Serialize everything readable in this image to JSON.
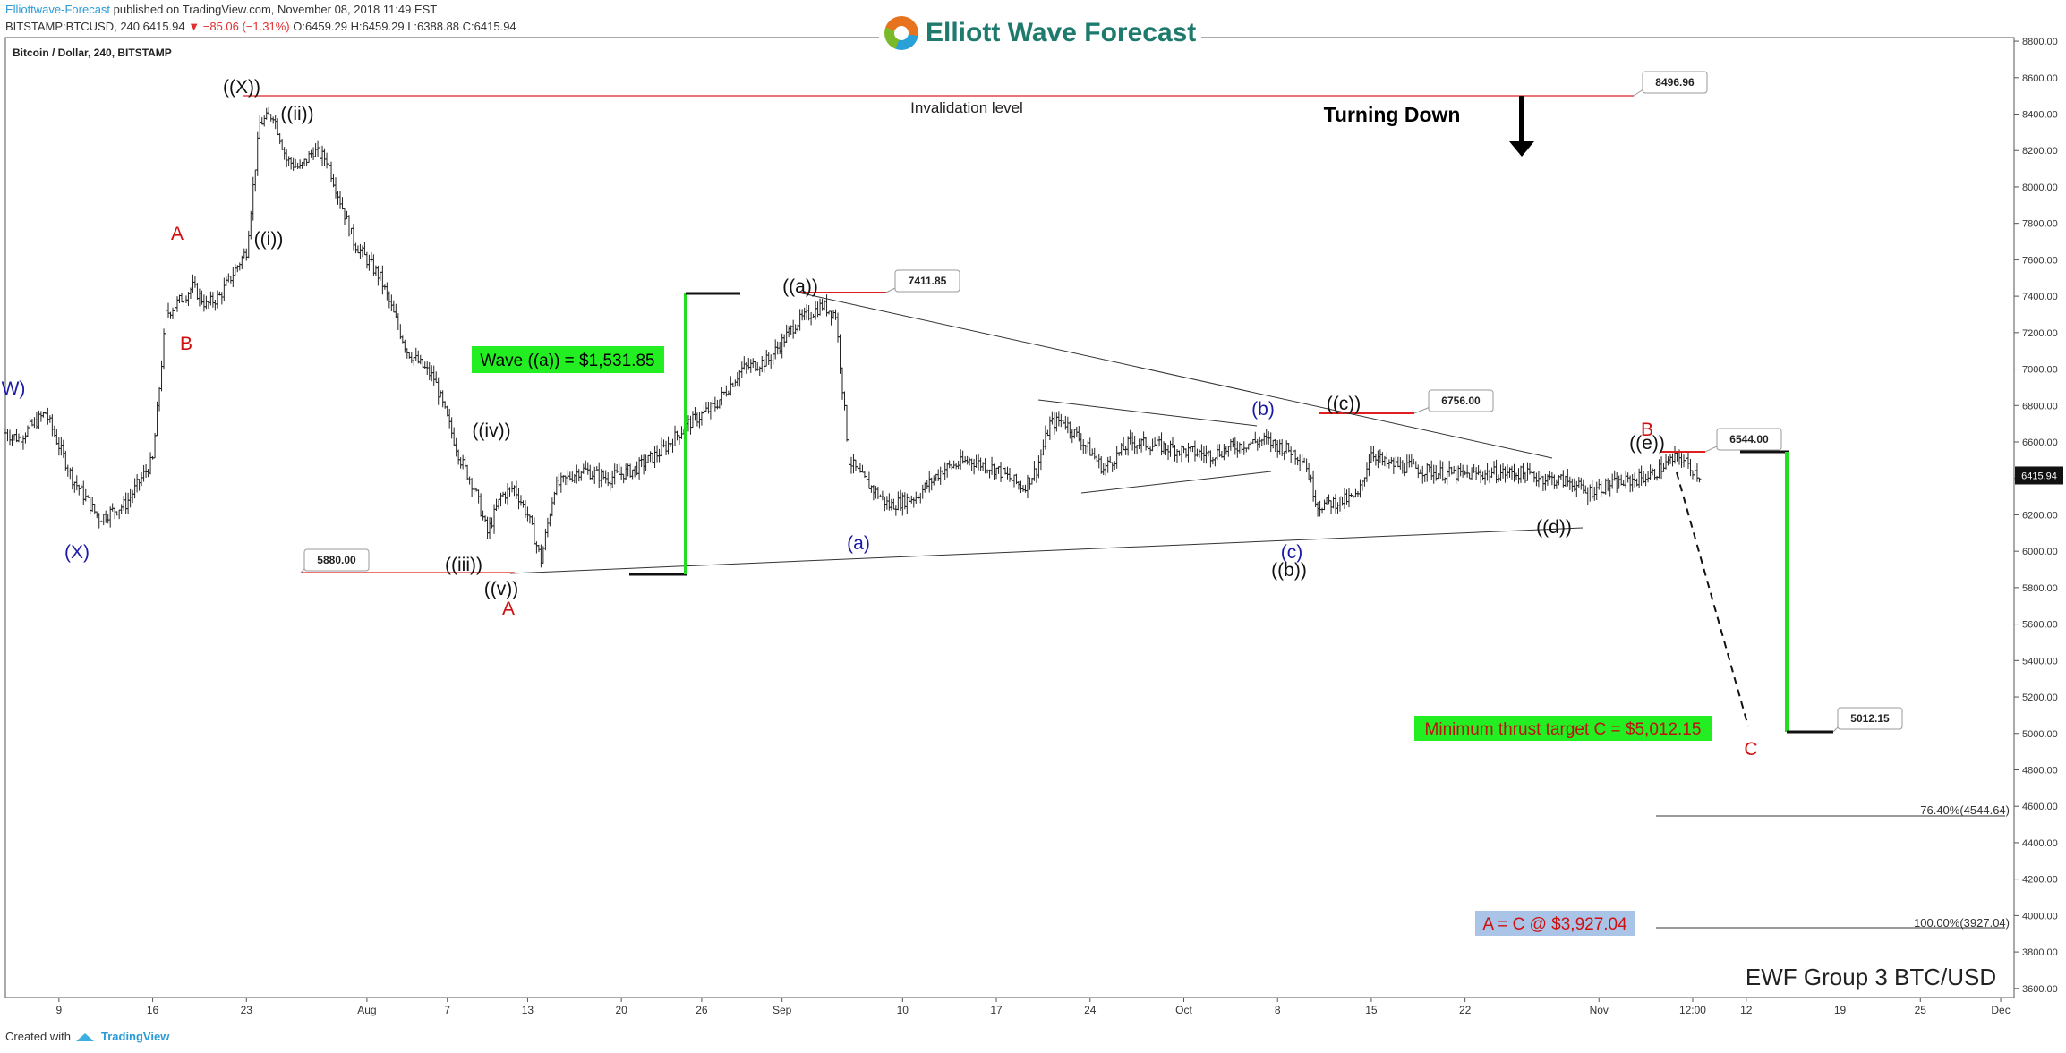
{
  "header": {
    "publisher": "Elliottwave-Forecast",
    "published": "published on TradingView.com, November 08, 2018 11:49 EST",
    "symbol": "BITSTAMP:BTCUSD, 240",
    "last": "6415.94",
    "change": "▼ −85.06 (−1.31%)",
    "open": "O:6459.29",
    "high": "H:6459.29",
    "low": "L:6388.88",
    "close": "C:6415.94"
  },
  "logo": {
    "text": "Elliott Wave Forecast"
  },
  "symbol_title": "Bitcoin / Dollar, 240, BITSTAMP",
  "footer": {
    "created_with": "Created with",
    "brand": "TradingView"
  },
  "chart_data": {
    "type": "ohlc",
    "title": "Bitcoin / Dollar, 240, BITSTAMP",
    "ylim": [
      3550,
      8820
    ],
    "x_dates": [
      "2018-07-05",
      "2018-12-02"
    ],
    "ytick_values": [
      3600,
      3800,
      4000,
      4200,
      4400,
      4600,
      4800,
      5000,
      5200,
      5400,
      5600,
      5800,
      6000,
      6200,
      6400,
      6600,
      6800,
      7000,
      7200,
      7400,
      7600,
      7800,
      8000,
      8200,
      8400,
      8600,
      8800
    ],
    "ytick_labels": [
      "3600.00",
      "3800.00",
      "4000.00",
      "4200.00",
      "4400.00",
      "4600.00",
      "4800.00",
      "5000.00",
      "5200.00",
      "5400.00",
      "5600.00",
      "5800.00",
      "6000.00",
      "6200.00",
      "6400.00",
      "6600.00",
      "6800.00",
      "7000.00",
      "7200.00",
      "7400.00",
      "7600.00",
      "7800.00",
      "8000.00",
      "8200.00",
      "8400.00",
      "8600.00",
      "8800.00"
    ],
    "xticks": [
      {
        "date": "2018-07-09",
        "label": "9"
      },
      {
        "date": "2018-07-16",
        "label": "16"
      },
      {
        "date": "2018-07-23",
        "label": "23"
      },
      {
        "date": "2018-08-01",
        "label": "Aug"
      },
      {
        "date": "2018-08-07",
        "label": "7"
      },
      {
        "date": "2018-08-13",
        "label": "13"
      },
      {
        "date": "2018-08-20",
        "label": "20"
      },
      {
        "date": "2018-08-26",
        "label": "26"
      },
      {
        "date": "2018-09-01",
        "label": "Sep"
      },
      {
        "date": "2018-09-10",
        "label": "10"
      },
      {
        "date": "2018-09-17",
        "label": "17"
      },
      {
        "date": "2018-09-24",
        "label": "24"
      },
      {
        "date": "2018-10-01",
        "label": "Oct"
      },
      {
        "date": "2018-10-08",
        "label": "8"
      },
      {
        "date": "2018-10-15",
        "label": "15"
      },
      {
        "date": "2018-10-22",
        "label": "22"
      },
      {
        "date": "2018-11-01",
        "label": "Nov"
      },
      {
        "date": "2018-11-08",
        "label": "12:00"
      },
      {
        "date": "2018-11-12",
        "label": "12"
      },
      {
        "date": "2018-11-19",
        "label": "19"
      },
      {
        "date": "2018-11-25",
        "label": "25"
      },
      {
        "date": "2018-12-01",
        "label": "Dec"
      }
    ],
    "price_path": [
      [
        "2018-07-05",
        6650
      ],
      [
        "2018-07-06",
        6620
      ],
      [
        "2018-07-08",
        6760
      ],
      [
        "2018-07-10",
        6400
      ],
      [
        "2018-07-12",
        6180
      ],
      [
        "2018-07-14",
        6260
      ],
      [
        "2018-07-16",
        6500
      ],
      [
        "2018-07-17",
        7300
      ],
      [
        "2018-07-19",
        7450
      ],
      [
        "2018-07-20",
        7350
      ],
      [
        "2018-07-21",
        7400
      ],
      [
        "2018-07-23",
        7650
      ],
      [
        "2018-07-24",
        8350
      ],
      [
        "2018-07-25",
        8400
      ],
      [
        "2018-07-26",
        8150
      ],
      [
        "2018-07-27",
        8100
      ],
      [
        "2018-07-28",
        8200
      ],
      [
        "2018-07-29",
        8150
      ],
      [
        "2018-07-31",
        7700
      ],
      [
        "2018-08-02",
        7500
      ],
      [
        "2018-08-04",
        7100
      ],
      [
        "2018-08-06",
        6950
      ],
      [
        "2018-08-08",
        6500
      ],
      [
        "2018-08-09",
        6350
      ],
      [
        "2018-08-10",
        6100
      ],
      [
        "2018-08-11",
        6300
      ],
      [
        "2018-08-12",
        6350
      ],
      [
        "2018-08-13",
        6200
      ],
      [
        "2018-08-14",
        5950
      ],
      [
        "2018-08-15",
        6350
      ],
      [
        "2018-08-17",
        6450
      ],
      [
        "2018-08-19",
        6400
      ],
      [
        "2018-08-21",
        6450
      ],
      [
        "2018-08-23",
        6550
      ],
      [
        "2018-08-25",
        6700
      ],
      [
        "2018-08-27",
        6800
      ],
      [
        "2018-08-29",
        7000
      ],
      [
        "2018-08-31",
        7050
      ],
      [
        "2018-09-02",
        7250
      ],
      [
        "2018-09-04",
        7350
      ],
      [
        "2018-09-05",
        7300
      ],
      [
        "2018-09-06",
        6500
      ],
      [
        "2018-09-07",
        6400
      ],
      [
        "2018-09-09",
        6250
      ],
      [
        "2018-09-11",
        6300
      ],
      [
        "2018-09-13",
        6450
      ],
      [
        "2018-09-15",
        6500
      ],
      [
        "2018-09-17",
        6450
      ],
      [
        "2018-09-19",
        6350
      ],
      [
        "2018-09-20",
        6450
      ],
      [
        "2018-09-21",
        6700
      ],
      [
        "2018-09-22",
        6720
      ],
      [
        "2018-09-24",
        6550
      ],
      [
        "2018-09-25",
        6450
      ],
      [
        "2018-09-27",
        6600
      ],
      [
        "2018-09-29",
        6580
      ],
      [
        "2018-10-01",
        6550
      ],
      [
        "2018-10-03",
        6530
      ],
      [
        "2018-10-05",
        6580
      ],
      [
        "2018-10-07",
        6610
      ],
      [
        "2018-10-09",
        6550
      ],
      [
        "2018-10-10",
        6500
      ],
      [
        "2018-10-11",
        6250
      ],
      [
        "2018-10-13",
        6280
      ],
      [
        "2018-10-14",
        6300
      ],
      [
        "2018-10-15",
        6550
      ],
      [
        "2018-10-16",
        6480
      ],
      [
        "2018-10-18",
        6460
      ],
      [
        "2018-10-20",
        6430
      ],
      [
        "2018-10-22",
        6420
      ],
      [
        "2018-10-24",
        6430
      ],
      [
        "2018-10-26",
        6430
      ],
      [
        "2018-10-28",
        6400
      ],
      [
        "2018-10-30",
        6380
      ],
      [
        "2018-10-31",
        6320
      ],
      [
        "2018-11-01",
        6350
      ],
      [
        "2018-11-03",
        6380
      ],
      [
        "2018-11-05",
        6420
      ],
      [
        "2018-11-06",
        6480
      ],
      [
        "2018-11-07",
        6520
      ],
      [
        "2018-11-08",
        6450
      ],
      [
        "2018-11-08.5",
        6416
      ]
    ]
  },
  "annotations": {
    "price_boxes": [
      {
        "label": "8496.96"
      },
      {
        "label": "7411.85"
      },
      {
        "label": "6756.00"
      },
      {
        "label": "6544.00"
      },
      {
        "label": "5880.00"
      },
      {
        "label": "5012.15"
      }
    ],
    "last_price_tag": "6415.94",
    "invalidation": "Invalidation level",
    "turning_down": "Turning Down",
    "wave_a_box": "Wave ((a)) = $1,531.85",
    "min_thrust_box": "Minimum thrust target C = $5,012.15",
    "a_eq_c_box": "A = C @ $3,927.04",
    "fib_76": "76.40%(4544.64)",
    "fib_100": "100.00%(3927.04)",
    "group_label": "EWF Group 3 BTC/USD",
    "wave_labels": [
      {
        "text": "W)",
        "color": "#1a1aa8"
      },
      {
        "text": "(X)",
        "color": "#1a1aa8"
      },
      {
        "text": "A",
        "color": "#d01010"
      },
      {
        "text": "B",
        "color": "#d01010"
      },
      {
        "text": "((X))",
        "color": "#111111"
      },
      {
        "text": "((ii))",
        "color": "#111111"
      },
      {
        "text": "((i))",
        "color": "#111111"
      },
      {
        "text": "((iv))",
        "color": "#111111"
      },
      {
        "text": "((iii))",
        "color": "#111111"
      },
      {
        "text": "((v))",
        "color": "#111111"
      },
      {
        "text": "A",
        "color": "#d01010"
      },
      {
        "text": "((a))",
        "color": "#111111"
      },
      {
        "text": "(a)",
        "color": "#1a1aa8"
      },
      {
        "text": "(b)",
        "color": "#1a1aa8"
      },
      {
        "text": "(c)",
        "color": "#1a1aa8"
      },
      {
        "text": "((b))",
        "color": "#111111"
      },
      {
        "text": "((c))",
        "color": "#111111"
      },
      {
        "text": "((d))",
        "color": "#111111"
      },
      {
        "text": "((e))",
        "color": "#111111"
      },
      {
        "text": "B",
        "color": "#d01010"
      },
      {
        "text": "C",
        "color": "#d01010"
      }
    ]
  },
  "colors": {
    "red_line": "#e02020",
    "green_bar": "#22dd22",
    "green_box": "#22ee22",
    "blue_box": "#a9c4e6",
    "axis": "#333333"
  }
}
